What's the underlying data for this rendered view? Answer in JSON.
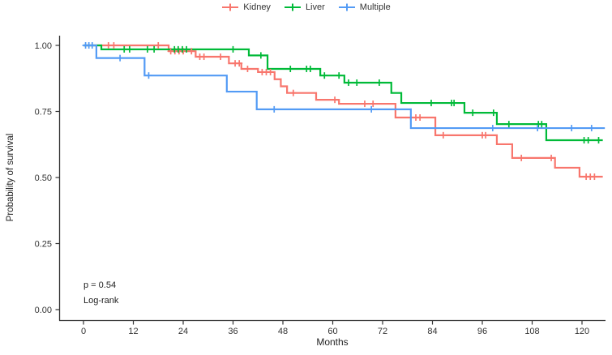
{
  "figure": {
    "background": "#ffffff",
    "axis_color": "#333333",
    "text_color": "#222222"
  },
  "chart_data": {
    "type": "line",
    "subtype": "kaplan-meier-survival",
    "title": "",
    "xlabel": "Months",
    "ylabel": "Probability of survival",
    "xlim": [
      0,
      126
    ],
    "ylim": [
      0,
      1
    ],
    "grid": false,
    "legend_position": "top-center",
    "annotation": {
      "line1": "p = 0.54",
      "line2": "Log-rank"
    },
    "x_ticks": [
      0,
      12,
      24,
      36,
      48,
      60,
      72,
      84,
      96,
      108,
      120
    ],
    "y_ticks": [
      {
        "value": 1.0,
        "label": "1.00"
      },
      {
        "value": 0.75,
        "label": "0.75"
      },
      {
        "value": 0.5,
        "label": "0.50"
      },
      {
        "value": 0.25,
        "label": "0.25"
      },
      {
        "value": 0.0,
        "label": "0.00"
      }
    ],
    "series": [
      {
        "name": "Kidney",
        "color": "#F8766D",
        "steps": [
          [
            0,
            1.0
          ],
          [
            20.5,
            0.978
          ],
          [
            27,
            0.957
          ],
          [
            35,
            0.932
          ],
          [
            38,
            0.911
          ],
          [
            42,
            0.899
          ],
          [
            46,
            0.872
          ],
          [
            47.5,
            0.845
          ],
          [
            49,
            0.82
          ],
          [
            56,
            0.794
          ],
          [
            61.5,
            0.779
          ],
          [
            75.1,
            0.727
          ],
          [
            84.7,
            0.66
          ],
          [
            99.5,
            0.626
          ],
          [
            103.2,
            0.574
          ],
          [
            113.5,
            0.537
          ],
          [
            119.4,
            0.503
          ]
        ],
        "end": 125,
        "censors": [
          6,
          7.3,
          18,
          21,
          22,
          23,
          24,
          26,
          28,
          29,
          33,
          36.5,
          37.5,
          39.5,
          43,
          44,
          45,
          50.5,
          60.5,
          67.7,
          69.7,
          80,
          81,
          86.6,
          96,
          96.8,
          105.4,
          112.6,
          121,
          122,
          123
        ]
      },
      {
        "name": "Liver",
        "color": "#00BA38",
        "steps": [
          [
            0,
            1.0
          ],
          [
            4.3,
            0.985
          ],
          [
            39.8,
            0.962
          ],
          [
            44.3,
            0.911
          ],
          [
            57,
            0.886
          ],
          [
            62.8,
            0.859
          ],
          [
            74.1,
            0.82
          ],
          [
            76.5,
            0.782
          ],
          [
            91.7,
            0.745
          ],
          [
            99.5,
            0.702
          ],
          [
            111.4,
            0.641
          ]
        ],
        "end": 125,
        "censors": [
          9.8,
          11.1,
          15.4,
          17,
          21.9,
          22.8,
          23.8,
          24.8,
          36,
          42.7,
          49.8,
          53.7,
          54.6,
          58,
          61.5,
          63.8,
          65.8,
          71.2,
          83.7,
          88.6,
          89.2,
          93.7,
          98.7,
          102.4,
          109.5,
          110.3,
          120.5,
          121.5,
          124
        ]
      },
      {
        "name": "Multiple",
        "color": "#539BF5",
        "steps": [
          [
            0,
            1.0
          ],
          [
            3.1,
            0.952
          ],
          [
            14.7,
            0.886
          ],
          [
            34.5,
            0.825
          ],
          [
            41.7,
            0.758
          ],
          [
            78.8,
            0.687
          ]
        ],
        "end": 125.5,
        "censors": [
          0.5,
          1.3,
          2.1,
          8.8,
          15.7,
          45.9,
          69.3,
          98.5,
          109.3,
          117.5,
          122.3
        ]
      }
    ]
  }
}
